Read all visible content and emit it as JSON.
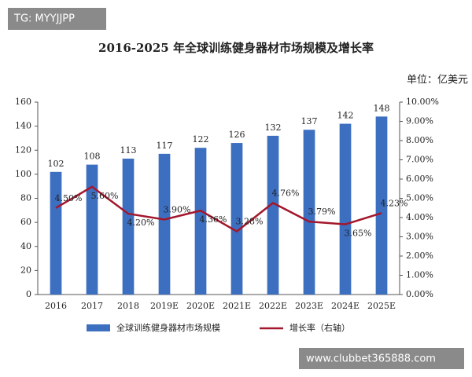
{
  "chart_data": {
    "type": "bar-line",
    "title": "2016-2025 年全球训练健身器材市场规模及增长率",
    "y_label": "单位：亿美元",
    "annotations": [
      "TG: MYYJJPP",
      "www.clubbet365888.com"
    ],
    "categories": [
      "2016",
      "2017",
      "2018",
      "2019E",
      "2020E",
      "2021E",
      "2022E",
      "2023E",
      "2024E",
      "2025E"
    ],
    "series": [
      {
        "name": "全球训练健身器材市场规模",
        "type": "bar",
        "color": "#3d6fc1",
        "values": [
          102,
          108,
          113,
          117,
          122,
          126,
          132,
          137,
          142,
          148
        ]
      },
      {
        "name": "增长率（右轴）",
        "type": "line",
        "axis": "y2",
        "color": "#a3172c",
        "values": [
          4.5,
          5.6,
          4.2,
          3.9,
          4.36,
          3.28,
          4.76,
          3.79,
          3.65,
          4.23
        ],
        "value_labels": [
          "4.50%",
          "5.60%",
          "4.20%",
          "3.90%",
          "4.36%",
          "3.28%",
          "4.76%",
          "3.79%",
          "3.65%",
          "4.23%"
        ]
      }
    ],
    "ylim": [
      0,
      160
    ],
    "yticks": [
      0,
      20,
      40,
      60,
      80,
      100,
      120,
      140,
      160
    ],
    "y2lim": [
      0,
      10
    ],
    "y2ticks": [
      {
        "value": 0,
        "label": "0.00%"
      },
      {
        "value": 1,
        "label": "1.00%"
      },
      {
        "value": 2,
        "label": "2.00%"
      },
      {
        "value": 3,
        "label": "3.00%"
      },
      {
        "value": 4,
        "label": "4.00%"
      },
      {
        "value": 5,
        "label": "5.00%"
      },
      {
        "value": 6,
        "label": "6.00%"
      },
      {
        "value": 7,
        "label": "7.00%"
      },
      {
        "value": 8,
        "label": "8.00%"
      },
      {
        "value": 9,
        "label": "9.00%"
      },
      {
        "value": 10,
        "label": "10.00%"
      }
    ],
    "legend": "bottom"
  }
}
